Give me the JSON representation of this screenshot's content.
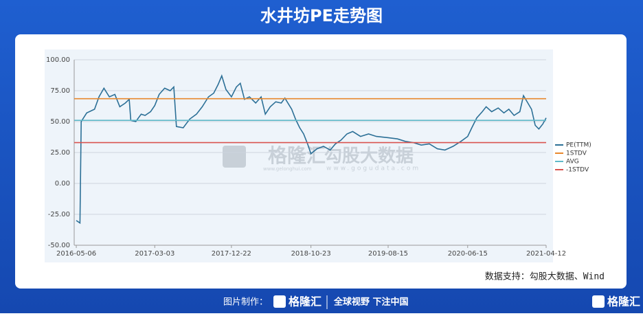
{
  "header": {
    "title": "水井坊PE走势图"
  },
  "chart_data": {
    "type": "line",
    "x": [
      "2016-05-06",
      "2016-05-20",
      "2016-05-25",
      "2016-06-15",
      "2016-07-15",
      "2016-08-01",
      "2016-08-20",
      "2016-09-10",
      "2016-10-01",
      "2016-10-20",
      "2016-11-10",
      "2016-11-25",
      "2016-12-01",
      "2016-12-20",
      "2017-01-10",
      "2017-01-25",
      "2017-02-15",
      "2017-03-03",
      "2017-03-20",
      "2017-04-10",
      "2017-05-01",
      "2017-05-15",
      "2017-05-25",
      "2017-06-20",
      "2017-07-15",
      "2017-08-10",
      "2017-09-01",
      "2017-09-25",
      "2017-10-15",
      "2017-11-01",
      "2017-11-15",
      "2017-12-01",
      "2017-12-22",
      "2018-01-10",
      "2018-01-25",
      "2018-02-10",
      "2018-03-01",
      "2018-03-25",
      "2018-04-15",
      "2018-05-01",
      "2018-05-20",
      "2018-06-10",
      "2018-07-01",
      "2018-07-15",
      "2018-08-10",
      "2018-08-25",
      "2018-09-10",
      "2018-09-25",
      "2018-10-10",
      "2018-10-23",
      "2018-11-15",
      "2018-12-10",
      "2019-01-05",
      "2019-01-25",
      "2019-02-15",
      "2019-03-10",
      "2019-04-01",
      "2019-05-01",
      "2019-06-01",
      "2019-07-01",
      "2019-08-15",
      "2019-09-20",
      "2019-10-20",
      "2019-11-20",
      "2019-12-20",
      "2020-01-20",
      "2020-02-20",
      "2020-03-20",
      "2020-04-20",
      "2020-05-20",
      "2020-06-15",
      "2020-07-01",
      "2020-07-20",
      "2020-08-10",
      "2020-08-25",
      "2020-09-15",
      "2020-10-10",
      "2020-11-01",
      "2020-11-20",
      "2020-12-10",
      "2021-01-01",
      "2021-01-15",
      "2021-02-01",
      "2021-02-15",
      "2021-03-01",
      "2021-03-15",
      "2021-03-30",
      "2021-04-12"
    ],
    "series": [
      {
        "name": "PE(TTM)",
        "color": "#2b6f96",
        "values": [
          -30,
          -32,
          50,
          57,
          60,
          70,
          77,
          70,
          72,
          62,
          65,
          68,
          51,
          50,
          56,
          55,
          58,
          63,
          72,
          77,
          75,
          78,
          46,
          45,
          52,
          56,
          62,
          70,
          73,
          80,
          87,
          76,
          70,
          78,
          81,
          68,
          70,
          65,
          70,
          56,
          62,
          66,
          65,
          69,
          60,
          52,
          45,
          40,
          32,
          24,
          28,
          30,
          27,
          32,
          35,
          40,
          42,
          38,
          40,
          38,
          37,
          36,
          34,
          33,
          31,
          32,
          28,
          27,
          30,
          34,
          38,
          45,
          53,
          58,
          62,
          58,
          61,
          57,
          60,
          55,
          58,
          71,
          65,
          60,
          47,
          44,
          48,
          53
        ]
      },
      {
        "name": "1STDV",
        "color": "#e8872c",
        "value": 68.5
      },
      {
        "name": "AVG",
        "color": "#5fb9c9",
        "value": 51
      },
      {
        "name": "-1STDV",
        "color": "#d9534f",
        "value": 33
      }
    ],
    "xlim": [
      "2016-04-28",
      "2021-04-12"
    ],
    "xticks": [
      "2016-05-06",
      "2017-03-03",
      "2017-12-22",
      "2018-10-23",
      "2019-08-15",
      "2020-06-15",
      "2021-04-12"
    ],
    "ylim": [
      -50,
      100
    ],
    "yticks": [
      {
        "value": 100,
        "label": "100.00"
      },
      {
        "value": 75,
        "label": "75.00"
      },
      {
        "value": 50,
        "label": "50.00"
      },
      {
        "value": 25,
        "label": "25.00"
      },
      {
        "value": 0,
        "label": "0.00"
      },
      {
        "value": -25,
        "label": "-25.00"
      },
      {
        "value": -50,
        "label": "-50.00"
      }
    ],
    "grid": true,
    "legend": "right"
  },
  "source": "数据支持：勾股大数据、Wind",
  "watermark": {
    "brand": "格隆汇",
    "brand_url": "www.gelonghui.com",
    "data": "勾股大数据",
    "data_url": "www.gogudata.com"
  },
  "footer": {
    "made_by": "图片制作：",
    "brand": "格隆汇",
    "slogan": "全球视野 下注中国",
    "right_brand": "格隆汇"
  }
}
